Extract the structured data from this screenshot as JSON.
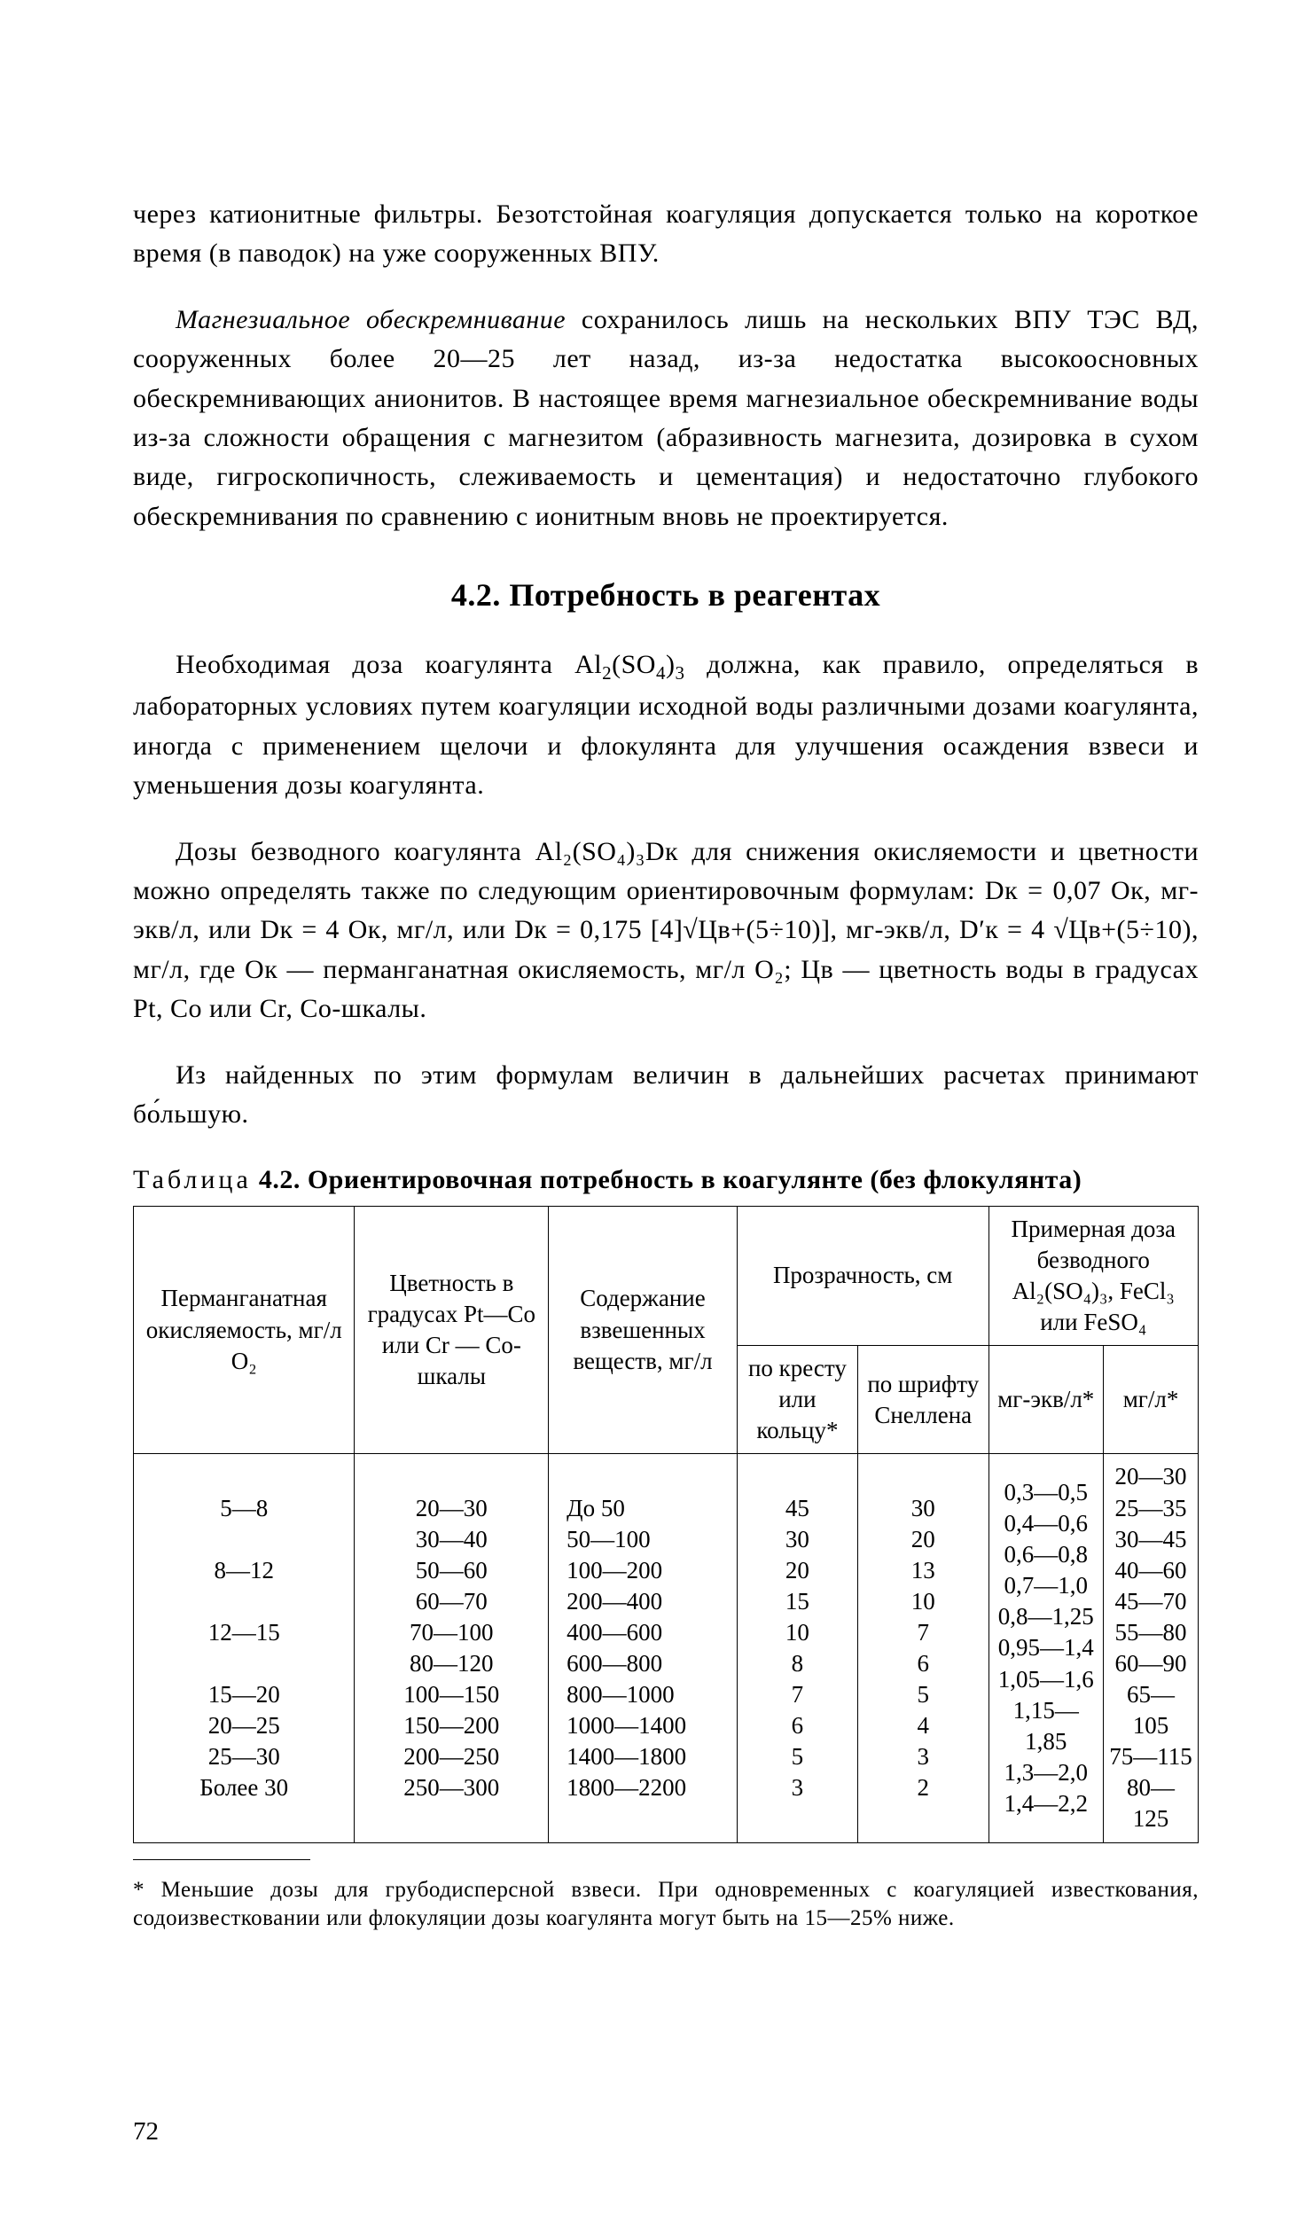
{
  "para1_a": "через катионитные фильтры. Безотстойная коагуляция допускается только на короткое время (в паводок) на уже сооруженных ВПУ.",
  "para2_lead_italic": "Магнезиальное обескремнивание",
  "para2_rest": " сохранилось лишь на нескольких ВПУ ТЭС ВД, сооруженных более 20—25 лет назад, из-за недостатка высокоосновных обескремнивающих анионитов. В настоящее время магнезиальное обескремнивание воды из-за сложности обращения с магнезитом (абразивность магнезита, дозировка в сухом виде, гигроскопичность, слеживаемость и цементация) и недостаточно глубокого обескремнивания по сравнению с ионитным вновь не проектируется.",
  "heading": "4.2. Потребность в реагентах",
  "para3_a": "Необходимая доза коагулянта Al",
  "para3_b": "(SO",
  "para3_c": ")",
  "para3_d": " должна, как правило, определяться в лабораторных условиях путем коагуляции исходной воды различными дозами коагулянта, иногда с применением щелочи и флокулянта для улучшения осаждения взвеси и уменьшения дозы коагулянта.",
  "para4_full": "Дозы безводного коагулянта Al₂(SO₄)₃Dк для снижения окисляемости и цветности можно определять также по следующим ориентировочным формулам: Dк = 0,07 Ок, мг-экв/л, или Dк = 4 Ок, мг/л, или Dк = 0,175 [4]√Цв+(5÷10)], мг-экв/л, D′к = 4 √Цв+(5÷10), мг/л, где Ок — перманганатная окисляемость, мг/л O₂; Цв — цветность воды в градусах Pt, Co или Cr, Co-шкалы.",
  "para5": "Из найденных по этим формулам величин в дальнейших расчетах принимают бо́льшую.",
  "table_caption_lead": "Таблица",
  "table_caption_rest": " 4.2. Ориентировочная потребность в коагулянте (без флокулянта)",
  "table": {
    "header_row1": {
      "c1": "Перманганатная окисляемость, мг/л O₂",
      "c2": "Цветность в градусах Pt—Co или Cr — Co-шкалы",
      "c3": "Содержание взвешенных веществ, мг/л",
      "c4": "Прозрачность, см",
      "c5": "Примерная доза безводного Al₂(SO₄)₃, FeCl₃ или FeSO₄"
    },
    "header_row2": {
      "c4a": "по кресту или кольцу*",
      "c4b": "по шрифту Снеллена",
      "c5a": "мг-экв/л*",
      "c5b": "мг/л*"
    },
    "body": {
      "col1": [
        "5—8",
        "",
        "8—12",
        "",
        "12—15",
        "",
        "15—20",
        "20—25",
        "25—30",
        "Более 30"
      ],
      "col2": [
        "20—30",
        "30—40",
        "50—60",
        "60—70",
        "70—100",
        "80—120",
        "100—150",
        "150—200",
        "200—250",
        "250—300"
      ],
      "col3": [
        "До 50",
        "50—100",
        "100—200",
        "200—400",
        "400—600",
        "600—800",
        "800—1000",
        "1000—1400",
        "1400—1800",
        "1800—2200"
      ],
      "col4": [
        "45",
        "30",
        "20",
        "15",
        "10",
        "8",
        "7",
        "6",
        "5",
        "3"
      ],
      "col5": [
        "30",
        "20",
        "13",
        "10",
        "7",
        "6",
        "5",
        "4",
        "3",
        "2"
      ],
      "col6": [
        "0,3—0,5",
        "0,4—0,6",
        "0,6—0,8",
        "0,7—1,0",
        "0,8—1,25",
        "0,95—1,4",
        "1,05—1,6",
        "1,15—1,85",
        "1,3—2,0",
        "1,4—2,2"
      ],
      "col7": [
        "20—30",
        "25—35",
        "30—45",
        "40—60",
        "45—70",
        "55—80",
        "60—90",
        "65—105",
        "75—115",
        "80—125"
      ]
    }
  },
  "footnote": "* Меньшие дозы для грубодисперсной взвеси. При одновременных с коагуляцией известкования, содоизвестковании или флокуляции дозы коагулянта могут быть на 15—25% ниже.",
  "page_number": "72"
}
